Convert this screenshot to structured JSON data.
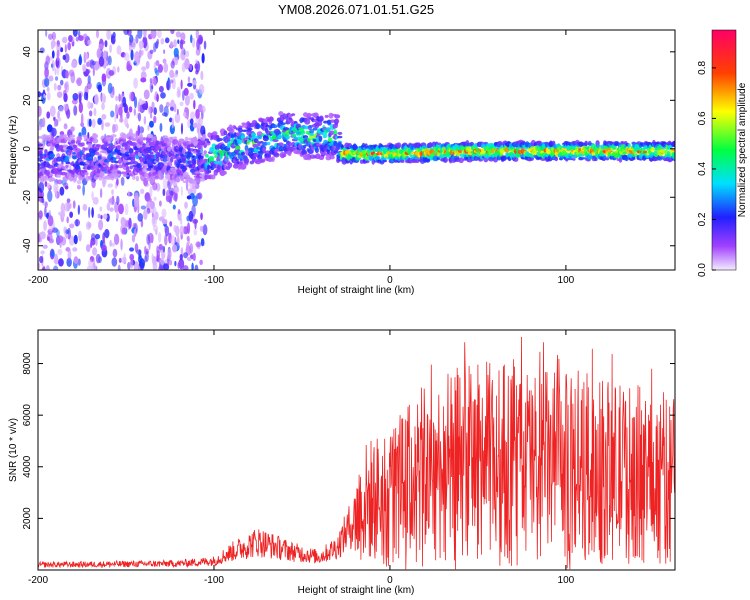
{
  "title": "YM08.2026.071.01.51.G25",
  "colors": {
    "snr_line": "#ee2222",
    "axes": "#000000",
    "background": "#ffffff"
  },
  "chart_data": [
    {
      "type": "heatmap",
      "name": "spectrogram",
      "xlabel": "Height of straight line (km)",
      "ylabel": "Frequency (Hz)",
      "xlim": [
        -200,
        162
      ],
      "ylim": [
        -50,
        49
      ],
      "xticks": [
        -200,
        -100,
        0,
        100
      ],
      "xtick_labels": [
        "-200",
        "-100",
        "0",
        "100"
      ],
      "yticks": [
        40,
        20,
        0,
        -20,
        -40
      ],
      "ytick_labels": [
        "40",
        "20",
        "0",
        "-20",
        "-40"
      ],
      "grid": false,
      "description_points": {
        "note": "Approximate frequency ridge center (Hz) vs height (km)",
        "x": [
          -200,
          -150,
          -110,
          -90,
          -70,
          -55,
          -45,
          -30,
          -28,
          0,
          50,
          100,
          162
        ],
        "y": [
          -4,
          -3,
          -5,
          0,
          4,
          7,
          5,
          5,
          -2,
          -2,
          -1,
          -1,
          -1
        ]
      },
      "colorbar": {
        "label": "Normalized spectral amplitude",
        "range": [
          0.0,
          0.95
        ],
        "ticks": [
          0.0,
          0.2,
          0.4,
          0.6,
          0.8
        ],
        "tick_labels": [
          "0.0",
          "0.2",
          "0.4",
          "0.6",
          "0.8"
        ]
      }
    },
    {
      "type": "line",
      "name": "snr",
      "xlabel": "Height of straight line (km)",
      "ylabel": "SNR (10 * v/v)",
      "xlim": [
        -200,
        162
      ],
      "ylim": [
        0,
        9300
      ],
      "xticks": [
        -200,
        -100,
        0,
        100
      ],
      "xtick_labels": [
        "-200",
        "-100",
        "0",
        "100"
      ],
      "yticks": [
        2000,
        4000,
        6000,
        8000
      ],
      "ytick_labels": [
        "2000",
        "4000",
        "6000",
        "8000"
      ],
      "grid": false,
      "envelope": {
        "note": "Approximate mean SNR vs height; the plotted trace is noisy around this mean",
        "x": [
          -200,
          -120,
          -100,
          -90,
          -75,
          -65,
          -55,
          -40,
          -30,
          -20,
          -15,
          0,
          20,
          40,
          60,
          80,
          100,
          120,
          140,
          162
        ],
        "y": [
          200,
          250,
          350,
          700,
          1100,
          900,
          700,
          500,
          900,
          2000,
          2600,
          3000,
          3800,
          4200,
          4300,
          4200,
          4000,
          3900,
          3800,
          3600
        ]
      }
    }
  ]
}
